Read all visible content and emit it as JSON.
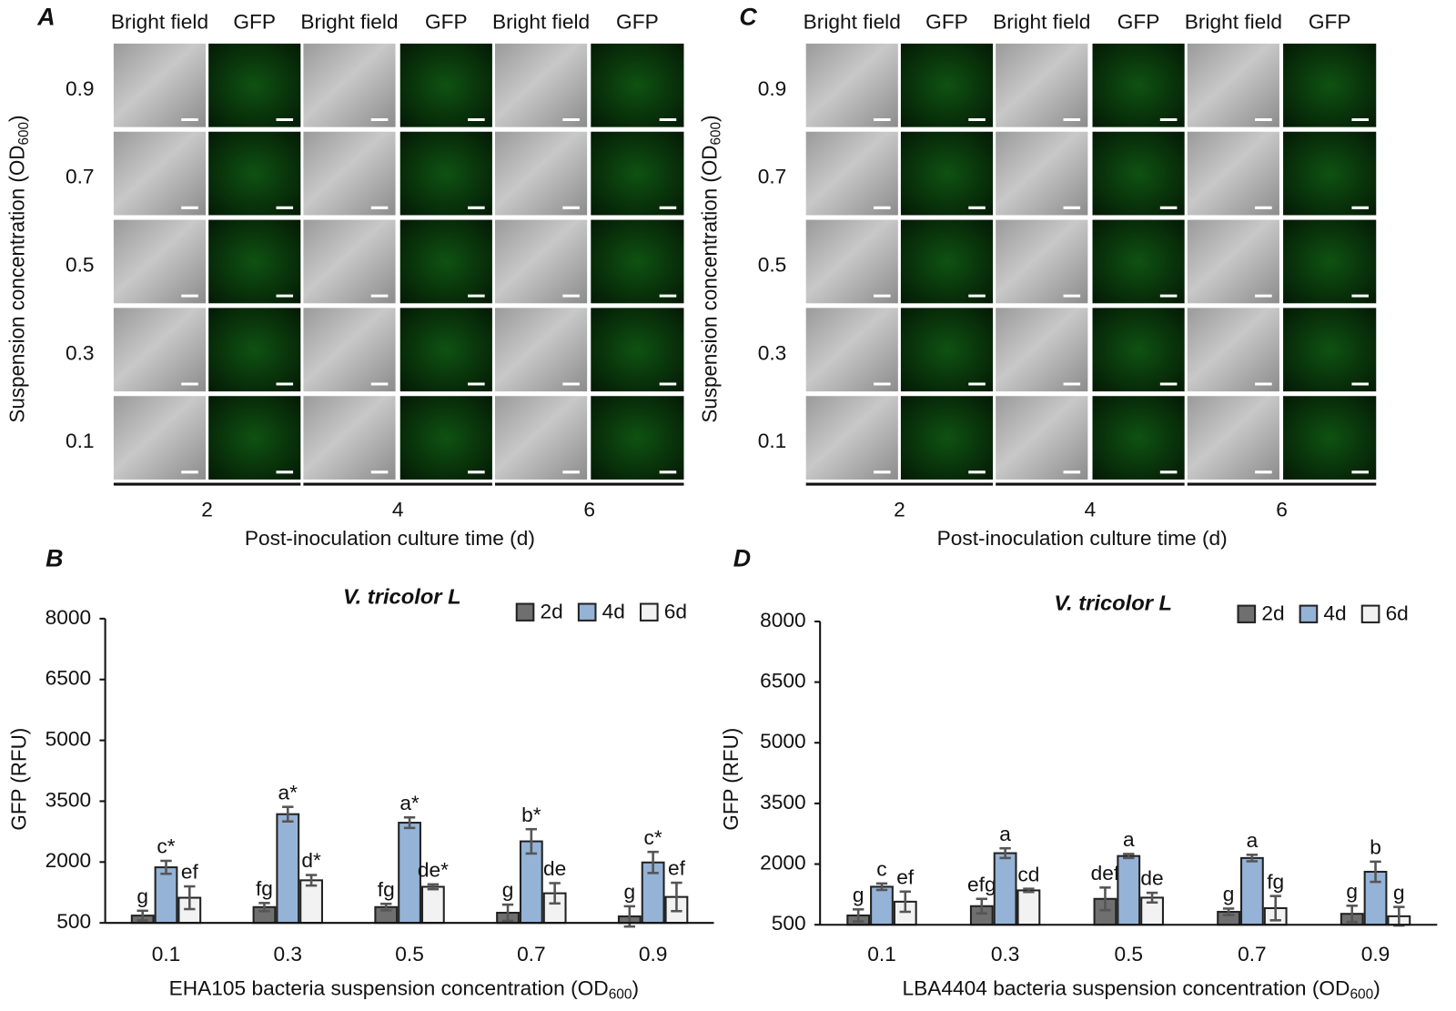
{
  "image_panels": [
    {
      "letter": "A",
      "column_headers": [
        "Bright field",
        "GFP",
        "Bright field",
        "GFP",
        "Bright field",
        "GFP"
      ],
      "row_labels": [
        "0.9",
        "0.7",
        "0.5",
        "0.3",
        "0.1"
      ],
      "y_label": {
        "text": "Suspension concentration (OD",
        "sub": "600",
        "end": ")"
      },
      "time_ticks": [
        "2",
        "4",
        "6"
      ],
      "x_label": "Post-inoculation culture time (d)"
    },
    {
      "letter": "C",
      "column_headers": [
        "Bright field",
        "GFP",
        "Bright field",
        "GFP",
        "Bright field",
        "GFP"
      ],
      "row_labels": [
        "0.9",
        "0.7",
        "0.5",
        "0.3",
        "0.1"
      ],
      "y_label": {
        "text": "Suspension concentration (OD",
        "sub": "600",
        "end": ")"
      },
      "time_ticks": [
        "2",
        "4",
        "6"
      ],
      "x_label": "Post-inoculation culture time (d)"
    }
  ],
  "chart_data": [
    {
      "type": "bar",
      "letter": "B",
      "title": "V. tricolor L",
      "y_label": "GFP (RFU)",
      "x_label": {
        "text": "EHA105 bacteria suspension concentration (OD",
        "sub": "600",
        "end": ")"
      },
      "categories": [
        "0.1",
        "0.3",
        "0.5",
        "0.7",
        "0.9"
      ],
      "ylim": [
        500,
        8000
      ],
      "yticks": [
        500,
        2000,
        3500,
        5000,
        6500,
        8000
      ],
      "legend": "top-right",
      "series": [
        {
          "name": "2d",
          "color": "#6f6f6f",
          "values": [
            680,
            890,
            890,
            750,
            660
          ],
          "errors": [
            120,
            100,
            80,
            200,
            250
          ],
          "letters": [
            "g",
            "fg",
            "fg",
            "g",
            "g"
          ]
        },
        {
          "name": "4d",
          "color": "#95b3d7",
          "values": [
            1870,
            3180,
            2970,
            2510,
            1990
          ],
          "errors": [
            160,
            180,
            130,
            300,
            260
          ],
          "letters": [
            "c*",
            "a*",
            "a*",
            "b*",
            "c*"
          ]
        },
        {
          "name": "6d",
          "color": "#f2f2f2",
          "values": [
            1120,
            1550,
            1390,
            1230,
            1140
          ],
          "errors": [
            280,
            130,
            60,
            250,
            350
          ],
          "letters": [
            "ef",
            "d*",
            "de*",
            "de",
            "ef"
          ]
        }
      ]
    },
    {
      "type": "bar",
      "letter": "D",
      "title": "V. tricolor L",
      "y_label": "GFP (RFU)",
      "x_label": {
        "text": "LBA4404 bacteria suspension concentration (OD",
        "sub": "600",
        "end": ")"
      },
      "categories": [
        "0.1",
        "0.3",
        "0.5",
        "0.7",
        "0.9"
      ],
      "ylim": [
        500,
        8000
      ],
      "yticks": [
        500,
        2000,
        3500,
        5000,
        6500,
        8000
      ],
      "legend": "top-right",
      "series": [
        {
          "name": "2d",
          "color": "#6f6f6f",
          "values": [
            730,
            960,
            1140,
            820,
            770
          ],
          "errors": [
            150,
            180,
            280,
            80,
            200
          ],
          "letters": [
            "g",
            "efg",
            "def",
            "g",
            "g"
          ]
        },
        {
          "name": "4d",
          "color": "#95b3d7",
          "values": [
            1440,
            2270,
            2200,
            2150,
            1810
          ],
          "errors": [
            80,
            120,
            50,
            80,
            250
          ],
          "letters": [
            "c",
            "a",
            "a",
            "a",
            "b"
          ]
        },
        {
          "name": "6d",
          "color": "#f2f2f2",
          "values": [
            1070,
            1350,
            1170,
            910,
            710
          ],
          "errors": [
            250,
            40,
            120,
            300,
            230
          ],
          "letters": [
            "ef",
            "cd",
            "de",
            "fg",
            "g"
          ]
        }
      ]
    }
  ]
}
